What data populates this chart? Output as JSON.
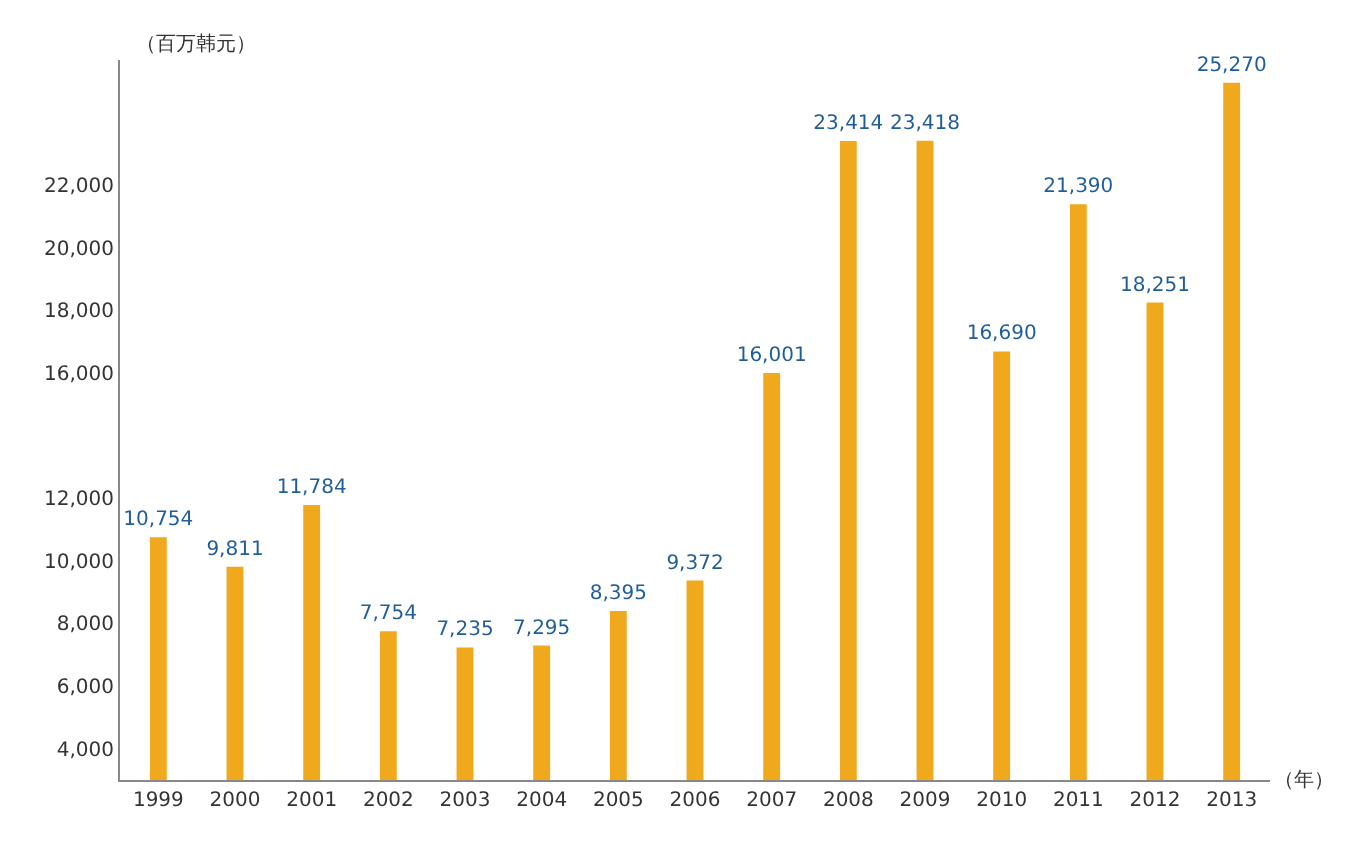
{
  "chart_data": {
    "type": "bar",
    "ylabel": "（百万韩元）",
    "xlabel": "（年）",
    "categories": [
      "1999",
      "2000",
      "2001",
      "2002",
      "2003",
      "2004",
      "2005",
      "2006",
      "2007",
      "2008",
      "2009",
      "2010",
      "2011",
      "2012",
      "2013"
    ],
    "values": [
      10754,
      9811,
      11784,
      7754,
      7235,
      7295,
      8395,
      9372,
      16001,
      23414,
      23418,
      16690,
      21390,
      18251,
      25270
    ],
    "value_labels": [
      "10,754",
      "9,811",
      "11,784",
      "7,754",
      "7,235",
      "7,295",
      "8,395",
      "9,372",
      "16,001",
      "23,414",
      "23,418",
      "16,690",
      "21,390",
      "18,251",
      "25,270"
    ],
    "color": "#f0a81c",
    "grid": false,
    "ylim": [
      3000,
      26000
    ],
    "yticks": [
      {
        "value": 4000,
        "label": "4,000"
      },
      {
        "value": 6000,
        "label": "6,000"
      },
      {
        "value": 8000,
        "label": "8,000"
      },
      {
        "value": 10000,
        "label": "10,000"
      },
      {
        "value": 12000,
        "label": "12,000"
      },
      {
        "value": 16000,
        "label": "16,000"
      },
      {
        "value": 18000,
        "label": "18,000"
      },
      {
        "value": 20000,
        "label": "20,000"
      },
      {
        "value": 22000,
        "label": "22,000"
      }
    ]
  }
}
